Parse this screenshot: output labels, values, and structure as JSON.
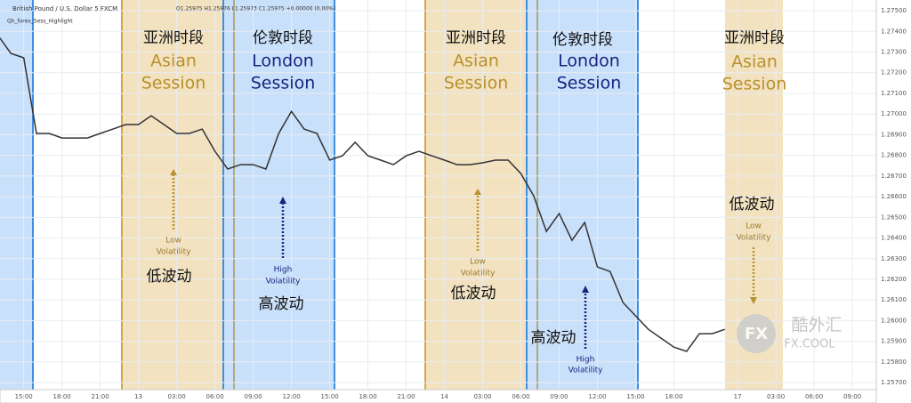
{
  "chart_data": {
    "type": "line",
    "title": "British Pound / U.S. Dollar  5  FXCM",
    "subtitle": "O1.25975  H1.25976  L1.25973  C1.25975  +0.00000 (0.00%)",
    "indicator": "Qh_forex_Sess_Highlight",
    "categories": [
      null,
      null,
      "15:00",
      null,
      null,
      "18:00",
      null,
      null,
      "21:00",
      null,
      null,
      "13",
      null,
      null,
      "03:00",
      null,
      null,
      "06:00",
      null,
      null,
      "09:00",
      null,
      null,
      "12:00",
      null,
      null,
      "15:00",
      null,
      null,
      "18:00",
      null,
      null,
      "21:00",
      null,
      null,
      "14",
      null,
      null,
      "03:00",
      null,
      null,
      "06:00",
      null,
      null,
      "09:00",
      null,
      null,
      "12:00",
      null,
      null,
      "15:00",
      null,
      null,
      "18:00",
      null,
      null,
      null,
      null,
      "17",
      null,
      null,
      "03:00",
      null,
      null,
      "06:00",
      null,
      null,
      "09:00"
    ],
    "values": [
      1.27379,
      1.27293,
      1.27272,
      1.26906,
      1.26906,
      1.26884,
      1.26884,
      1.26884,
      1.26906,
      1.26927,
      1.26949,
      1.26949,
      1.26992,
      1.26949,
      1.26906,
      1.26906,
      1.26927,
      1.2682,
      1.26734,
      1.26755,
      1.26755,
      1.26734,
      1.26906,
      1.27013,
      1.26927,
      1.26906,
      1.26777,
      1.26798,
      1.26863,
      1.26798,
      1.26777,
      1.26755,
      1.26798,
      1.2682,
      1.26798,
      1.26777,
      1.26755,
      1.26755,
      1.26764,
      1.26777,
      1.26777,
      1.26712,
      1.26604,
      1.26432,
      1.26518,
      1.26389,
      1.26475,
      1.2626,
      1.26238,
      1.26088,
      1.26023,
      1.25958,
      1.25915,
      1.25872,
      1.25851,
      1.25937,
      1.25937,
      1.25958,
      null,
      null,
      null,
      null,
      null,
      null,
      null,
      null,
      null,
      null
    ],
    "color": "#333333",
    "ylim": [
      1.25666,
      1.27552
    ],
    "yticks": [
      {
        "value": 1.257,
        "label": "1.25700"
      },
      {
        "value": 1.258,
        "label": "1.25800"
      },
      {
        "value": 1.259,
        "label": "1.25900"
      },
      {
        "value": 1.26,
        "label": "1.26000"
      },
      {
        "value": 1.261,
        "label": "1.26100"
      },
      {
        "value": 1.262,
        "label": "1.26200"
      },
      {
        "value": 1.263,
        "label": "1.26300"
      },
      {
        "value": 1.264,
        "label": "1.26400"
      },
      {
        "value": 1.265,
        "label": "1.26500"
      },
      {
        "value": 1.266,
        "label": "1.26600"
      },
      {
        "value": 1.267,
        "label": "1.26700"
      },
      {
        "value": 1.268,
        "label": "1.26800"
      },
      {
        "value": 1.269,
        "label": "1.26900"
      },
      {
        "value": 1.27,
        "label": "1.27000"
      },
      {
        "value": 1.271,
        "label": "1.27100"
      },
      {
        "value": 1.272,
        "label": "1.27200"
      },
      {
        "value": 1.273,
        "label": "1.27300"
      },
      {
        "value": 1.274,
        "label": "1.27400"
      },
      {
        "value": 1.275,
        "label": "1.27500"
      }
    ],
    "grid": true,
    "sessions": [
      {
        "cn": "亚洲时段",
        "en1": "Asian",
        "en2": "Session"
      },
      {
        "cn": "伦敦时段",
        "en1": "London",
        "en2": "Session"
      },
      {
        "cn": "亚洲时段",
        "en1": "Asian",
        "en2": "Session"
      },
      {
        "cn": "伦敦时段",
        "en1": "London",
        "en2": "Session"
      },
      {
        "cn": "亚洲时段",
        "en1": "Asian",
        "en2": "Session"
      }
    ],
    "volatility": [
      {
        "en1": "Low",
        "en2": "Volatility",
        "cn": "低波动"
      },
      {
        "en1": "High",
        "en2": "Volatility",
        "cn": "高波动"
      },
      {
        "en1": "Low",
        "en2": "Volatility",
        "cn": "低波动"
      },
      {
        "en1": "High",
        "en2": "Volatility",
        "cn": "高波动"
      },
      {
        "en1": "Low",
        "en2": "Volatility",
        "cn": "低波动"
      }
    ]
  },
  "watermark": {
    "logo": "FX",
    "name": "酷外汇",
    "site": "FX.COOL"
  }
}
